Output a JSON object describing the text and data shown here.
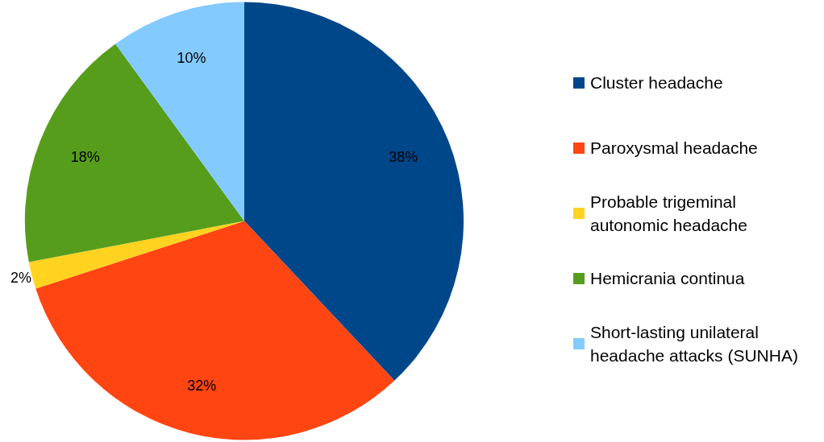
{
  "chart_data": {
    "type": "pie",
    "categories": [
      "Cluster headache",
      "Paroxysmal headache",
      "Probable trigeminal autonomic headache",
      "Hemicrania continua",
      "Short-lasting unilateral headache attacks (SUNHA)"
    ],
    "values": [
      38,
      32,
      2,
      18,
      10
    ],
    "colors": [
      "#00478a",
      "#ff4512",
      "#ffd320",
      "#579d1c",
      "#83caff"
    ],
    "value_labels": [
      "38%",
      "32%",
      "2%",
      "18%",
      "10%"
    ],
    "legend": "right"
  }
}
